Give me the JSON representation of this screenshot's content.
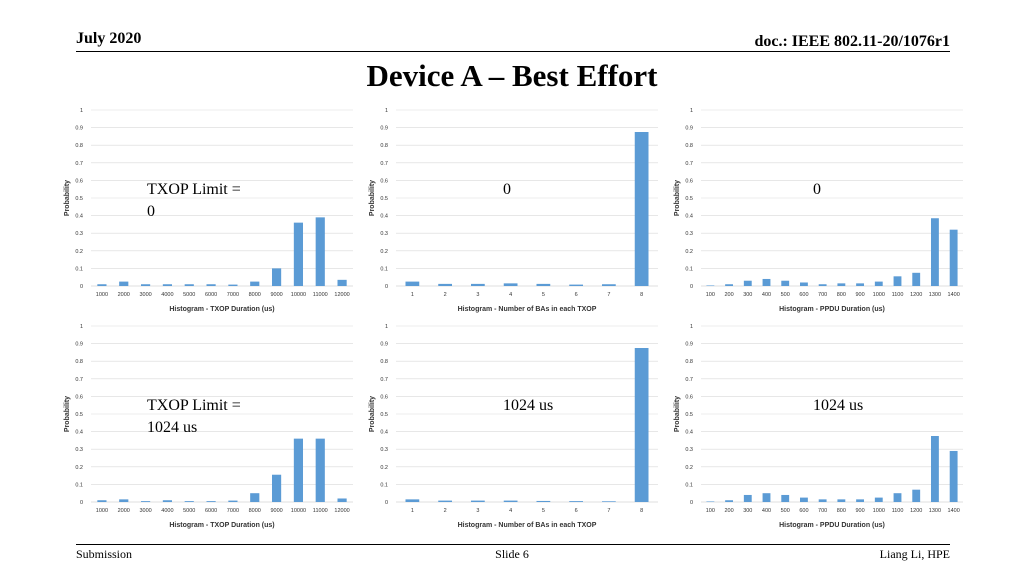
{
  "header": {
    "date": "July 2020",
    "doc": "doc.: IEEE 802.11-20/1076r1"
  },
  "slide_title": "Device A – Best Effort",
  "footer": {
    "left": "Submission",
    "center": "Slide 6",
    "right": "Liang Li, HPE"
  },
  "colors": {
    "bar": "#5b9bd5",
    "grid": "#d9d9d9",
    "axis": "#bfbfbf"
  },
  "panel_labels": [
    [
      "TXOP Limit =",
      "0"
    ],
    [
      "0"
    ],
    [
      "0"
    ],
    [
      "TXOP Limit =",
      "1024 us"
    ],
    [
      "1024 us"
    ],
    [
      "1024 us"
    ]
  ],
  "chart_data": [
    {
      "type": "bar",
      "categories": [
        "1000",
        "2000",
        "3000",
        "4000",
        "5000",
        "6000",
        "7000",
        "8000",
        "9000",
        "10000",
        "11000",
        "12000"
      ],
      "values": [
        0.01,
        0.025,
        0.01,
        0.01,
        0.01,
        0.01,
        0.008,
        0.025,
        0.1,
        0.36,
        0.39,
        0.035
      ],
      "xlabel": "Histogram - TXOP Duration (us)",
      "ylabel": "Probability",
      "ylim": [
        0,
        1
      ],
      "yticks": [
        "0",
        "0.1",
        "0.2",
        "0.3",
        "0.4",
        "0.5",
        "0.6",
        "0.7",
        "0.8",
        "0.9",
        "1"
      ],
      "grid": true
    },
    {
      "type": "bar",
      "categories": [
        "1",
        "2",
        "3",
        "4",
        "5",
        "6",
        "7",
        "8"
      ],
      "values": [
        0.025,
        0.012,
        0.012,
        0.015,
        0.012,
        0.008,
        0.01,
        0.875
      ],
      "xlabel": "Histogram - Number of BAs in each TXOP",
      "ylabel": "Probability",
      "ylim": [
        0,
        1
      ],
      "yticks": [
        "0",
        "0.1",
        "0.2",
        "0.3",
        "0.4",
        "0.5",
        "0.6",
        "0.7",
        "0.8",
        "0.9",
        "1"
      ],
      "grid": true
    },
    {
      "type": "bar",
      "categories": [
        "100",
        "200",
        "300",
        "400",
        "500",
        "600",
        "700",
        "800",
        "900",
        "1000",
        "1100",
        "1200",
        "1300",
        "1400"
      ],
      "values": [
        0.003,
        0.01,
        0.03,
        0.04,
        0.03,
        0.02,
        0.01,
        0.015,
        0.015,
        0.025,
        0.055,
        0.075,
        0.385,
        0.32
      ],
      "xlabel": "Histogram - PPDU Duration (us)",
      "ylabel": "Probability",
      "ylim": [
        0,
        1
      ],
      "yticks": [
        "0",
        "0.1",
        "0.2",
        "0.3",
        "0.4",
        "0.5",
        "0.6",
        "0.7",
        "0.8",
        "0.9",
        "1"
      ],
      "grid": true
    },
    {
      "type": "bar",
      "categories": [
        "1000",
        "2000",
        "3000",
        "4000",
        "5000",
        "6000",
        "7000",
        "8000",
        "9000",
        "10000",
        "11000",
        "12000"
      ],
      "values": [
        0.01,
        0.015,
        0.005,
        0.01,
        0.005,
        0.005,
        0.008,
        0.05,
        0.155,
        0.36,
        0.36,
        0.02
      ],
      "xlabel": "Histogram - TXOP Duration (us)",
      "ylabel": "Probability",
      "ylim": [
        0,
        1
      ],
      "yticks": [
        "0",
        "0.1",
        "0.2",
        "0.3",
        "0.4",
        "0.5",
        "0.6",
        "0.7",
        "0.8",
        "0.9",
        "1"
      ],
      "grid": true
    },
    {
      "type": "bar",
      "categories": [
        "1",
        "2",
        "3",
        "4",
        "5",
        "6",
        "7",
        "8"
      ],
      "values": [
        0.015,
        0.008,
        0.008,
        0.008,
        0.006,
        0.005,
        0.004,
        0.875
      ],
      "xlabel": "Histogram - Number of BAs in each TXOP",
      "ylabel": "Probability",
      "ylim": [
        0,
        1
      ],
      "yticks": [
        "0",
        "0.1",
        "0.2",
        "0.3",
        "0.4",
        "0.5",
        "0.6",
        "0.7",
        "0.8",
        "0.9",
        "1"
      ],
      "grid": true
    },
    {
      "type": "bar",
      "categories": [
        "100",
        "200",
        "300",
        "400",
        "500",
        "600",
        "700",
        "800",
        "900",
        "1000",
        "1100",
        "1200",
        "1300",
        "1400"
      ],
      "values": [
        0.003,
        0.01,
        0.04,
        0.05,
        0.04,
        0.025,
        0.015,
        0.015,
        0.015,
        0.025,
        0.05,
        0.07,
        0.375,
        0.29
      ],
      "xlabel": "Histogram - PPDU Duration (us)",
      "ylabel": "Probability",
      "ylim": [
        0,
        1
      ],
      "yticks": [
        "0",
        "0.1",
        "0.2",
        "0.3",
        "0.4",
        "0.5",
        "0.6",
        "0.7",
        "0.8",
        "0.9",
        "1"
      ],
      "grid": true
    }
  ]
}
